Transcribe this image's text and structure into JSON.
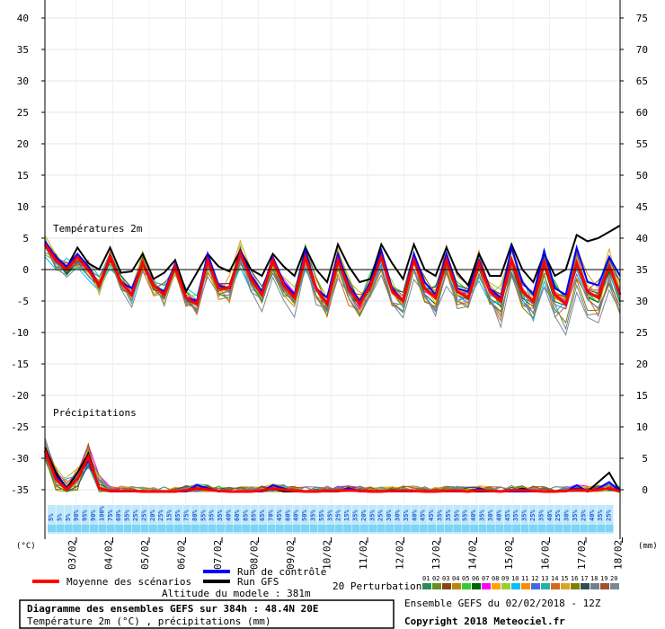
{
  "chart_data": {
    "type": "line",
    "left_axis_unit": "(°C)",
    "right_axis_unit": "(mm)",
    "temp_ticks": [
      40,
      35,
      30,
      25,
      20,
      15,
      10,
      5,
      0,
      -5,
      -10,
      -15,
      -20,
      -25,
      -30,
      -35
    ],
    "precip_ticks": [
      75,
      70,
      65,
      60,
      55,
      50,
      45,
      40,
      35,
      30,
      25,
      20,
      15,
      10,
      5,
      0
    ],
    "dates": [
      "03/02",
      "04/02",
      "05/02",
      "06/02",
      "07/02",
      "08/02",
      "09/02",
      "10/02",
      "11/02",
      "12/02",
      "13/02",
      "14/02",
      "15/02",
      "16/02",
      "17/02",
      "18/02"
    ],
    "temp_title": "Températures 2m",
    "precip_title": "Précipitations",
    "probabilities": [
      "5%",
      "5%",
      "5%",
      "90%",
      "95%",
      "90%",
      "100%",
      "75%",
      "60%",
      "55%",
      "25%",
      "25%",
      "20%",
      "25%",
      "15%",
      "85%",
      "75%",
      "80%",
      "55%",
      "35%",
      "35%",
      "40%",
      "60%",
      "85%",
      "85%",
      "65%",
      "70%",
      "45%",
      "60%",
      "40%",
      "50%",
      "35%",
      "55%",
      "35%",
      "25%",
      "15%",
      "35%",
      "20%",
      "35%",
      "25%",
      "30%",
      "30%",
      "35%",
      "40%",
      "45%",
      "45%",
      "35%",
      "35%",
      "55%",
      "55%",
      "40%",
      "35%",
      "30%",
      "40%",
      "45%",
      "35%",
      "35%",
      "25%",
      "35%",
      "40%",
      "25%",
      "30%",
      "35%",
      "25%",
      "40%",
      "35%",
      "25%"
    ],
    "series": [
      {
        "name": "Run GFS",
        "color": "#000000",
        "temp": [
          4.5,
          1.5,
          0.3,
          3.5,
          1.0,
          0,
          3.5,
          -0.5,
          -0.3,
          2.5,
          -1.5,
          -0.5,
          1.5,
          -3.5,
          -0.5,
          2.5,
          0.5,
          -0.3,
          3.0,
          0,
          -1.0,
          2.5,
          0.5,
          -1.0,
          3.5,
          0,
          -2.0,
          4.0,
          0.5,
          -2.0,
          -1.5,
          4.0,
          1.0,
          -1.5,
          4.0,
          0,
          -1.0,
          3.5,
          -0.5,
          -2.5,
          2.5,
          -1.0,
          -1.0,
          4.0,
          0,
          -2.0,
          2.5,
          -1.0,
          0,
          5.5,
          4.5,
          5.0,
          6.0,
          7.0
        ],
        "precip": [
          7.0,
          3.0,
          0.5,
          3.0,
          6.0,
          0.5,
          0.1,
          0,
          0,
          0,
          0,
          0,
          0,
          0,
          0.5,
          0.5,
          0,
          0,
          0,
          0,
          0,
          0.5,
          0,
          0,
          0,
          0,
          0,
          0,
          0.5,
          0,
          0,
          0,
          0,
          0,
          0,
          0,
          0,
          0,
          0,
          0,
          0,
          0,
          0,
          0,
          0.5,
          0,
          0,
          0,
          0,
          0.5,
          0,
          1.5,
          3.0,
          0
        ]
      },
      {
        "name": "Run de contrôle",
        "color": "#0000ff",
        "temp": [
          4.5,
          2.0,
          0.5,
          2.5,
          0.5,
          -2.5,
          2.0,
          -2.0,
          -3.0,
          1.0,
          -2.5,
          -3.5,
          1.0,
          -4.5,
          -5.0,
          2.5,
          -2.5,
          -3.0,
          3.0,
          -1.0,
          -3.5,
          2.0,
          -2.0,
          -4.0,
          3.0,
          -3.0,
          -4.5,
          2.5,
          -2.5,
          -5.0,
          -2.0,
          3.0,
          -3.0,
          -5.0,
          2.5,
          -2.0,
          -4.0,
          2.5,
          -3.0,
          -3.5,
          1.5,
          -3.0,
          -4.5,
          3.5,
          -2.0,
          -4.0,
          3.0,
          -3.0,
          -4.0,
          3.5,
          -2.0,
          -2.5,
          2.0,
          -1.0
        ],
        "precip": [
          6.0,
          2.5,
          0.5,
          2.0,
          5.0,
          0.5,
          0,
          0,
          0,
          0,
          0,
          0,
          0,
          0,
          1.0,
          0.5,
          0,
          0,
          0,
          0,
          0,
          1.0,
          0.5,
          0,
          0,
          0,
          0.2,
          0,
          0.5,
          0,
          0,
          0,
          0,
          0,
          0,
          0,
          0,
          0,
          0,
          0,
          0.5,
          0,
          0,
          0,
          0,
          0,
          0,
          0,
          0,
          1.0,
          0,
          0.5,
          1.5,
          0
        ]
      },
      {
        "name": "Moyenne des scénarios",
        "color": "#ff0000",
        "temp": [
          4.0,
          1.5,
          0,
          2.0,
          0,
          -2.5,
          2.0,
          -2.0,
          -4.0,
          1.0,
          -2.5,
          -4.0,
          0.5,
          -4.5,
          -5.5,
          1.5,
          -3.0,
          -3.0,
          2.5,
          -1.5,
          -4.0,
          1.5,
          -2.5,
          -4.5,
          2.0,
          -3.0,
          -5.5,
          1.5,
          -3.0,
          -5.5,
          -2.5,
          2.0,
          -3.5,
          -5.0,
          1.5,
          -3.0,
          -4.5,
          1.5,
          -3.5,
          -4.5,
          1.0,
          -3.5,
          -5.0,
          1.5,
          -3.5,
          -5.0,
          1.0,
          -4.0,
          -5.5,
          1.0,
          -3.5,
          -4.5,
          0.5,
          -4.0
        ],
        "precip": [
          6.5,
          2.0,
          0.3,
          2.0,
          5.5,
          0.5,
          0.1,
          0.1,
          0.1,
          0,
          0,
          0,
          0,
          0.2,
          0.5,
          0.3,
          0.1,
          0,
          0,
          0,
          0.2,
          0.5,
          0.3,
          0.1,
          0,
          0,
          0.1,
          0.1,
          0.2,
          0.1,
          0,
          0,
          0.1,
          0.1,
          0.1,
          0,
          0,
          0.1,
          0.1,
          0,
          0.2,
          0.1,
          0,
          0.2,
          0.2,
          0.1,
          0,
          0,
          0.1,
          0.3,
          0.1,
          0.3,
          0.5,
          0
        ]
      }
    ]
  },
  "legend": {
    "mean_label": "Moyenne des scénarios",
    "control_label": "Run de contrôle",
    "gfs_label": "Run GFS",
    "altitude_label": "Altitude du modele : 381m",
    "perturbations_label": "20 Perturbations",
    "perturbation_numbers": [
      "01",
      "02",
      "03",
      "04",
      "05",
      "06",
      "07",
      "08",
      "09",
      "10",
      "11",
      "12",
      "13",
      "14",
      "15",
      "16",
      "17",
      "18",
      "19",
      "20"
    ],
    "perturbation_colors": [
      "#2e8b57",
      "#6b8e23",
      "#8b4513",
      "#b8860b",
      "#32cd32",
      "#006400",
      "#ff00ff",
      "#ffa500",
      "#9acd32",
      "#00bfff",
      "#ff8c00",
      "#4169e1",
      "#20b2aa",
      "#d2691e",
      "#daa520",
      "#808000",
      "#2f4f4f",
      "#708090",
      "#a0522d",
      "#778899"
    ]
  },
  "footer": {
    "diagram_title": "Diagramme des ensembles GEFS sur 384h : 48.4N 20E",
    "diagram_subtitle": "Température 2m (°C) , précipitations (mm)",
    "ensemble_label": "Ensemble GEFS du 02/02/2018 - 12Z",
    "copyright": "Copyright 2018 Meteociel.fr"
  }
}
